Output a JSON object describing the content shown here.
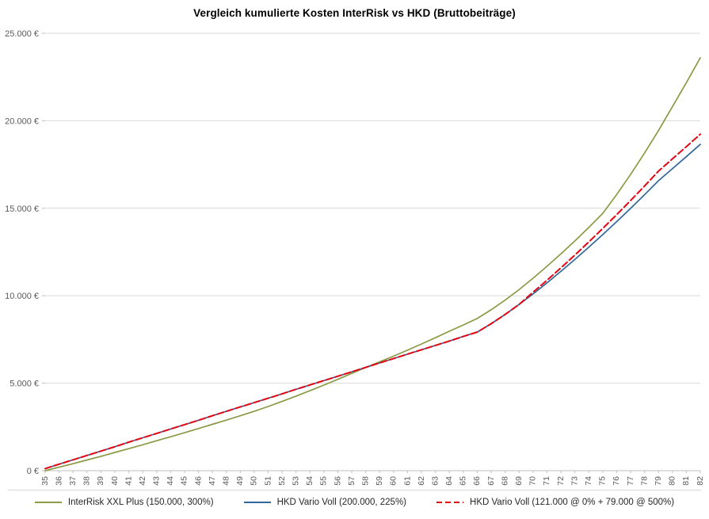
{
  "title": "Vergleich kumulierte Kosten InterRisk vs HKD (Bruttobeiträge)",
  "colors": {
    "background": "#ffffff",
    "grid": "#d9d9d9",
    "axis_line": "#bfbfbf",
    "axis_text": "#595959",
    "title_text": "#000000",
    "legend_text": "#262626",
    "series_green": "#8a9a45",
    "series_blue": "#31679b",
    "series_red": "#e30613"
  },
  "chart_data": {
    "type": "line",
    "title": "Vergleich kumulierte Kosten InterRisk vs HKD (Bruttobeiträge)",
    "xlabel": "",
    "ylabel": "",
    "grid": true,
    "legend_position": "bottom",
    "ylim": [
      0,
      25000
    ],
    "ytick_values": [
      0,
      5000,
      10000,
      15000,
      20000,
      25000
    ],
    "ytick_labels": [
      "0 €",
      "5.000 €",
      "10.000 €",
      "15.000 €",
      "20.000 €",
      "25.000 €"
    ],
    "x": [
      35,
      36,
      37,
      38,
      39,
      40,
      41,
      42,
      43,
      44,
      45,
      46,
      47,
      48,
      49,
      50,
      51,
      52,
      53,
      54,
      55,
      56,
      57,
      58,
      59,
      60,
      61,
      62,
      63,
      64,
      65,
      66,
      67,
      68,
      69,
      70,
      71,
      72,
      73,
      74,
      75,
      76,
      77,
      78,
      79,
      80,
      81,
      82
    ],
    "series": [
      {
        "name": "InterRisk XXL Plus (150.000, 300%)",
        "color": "#8a9a45",
        "style": "solid",
        "values": [
          0,
          200,
          400,
          610,
          820,
          1040,
          1260,
          1480,
          1710,
          1940,
          2170,
          2410,
          2650,
          2890,
          3140,
          3390,
          3670,
          3960,
          4260,
          4570,
          4890,
          5220,
          5560,
          5900,
          6220,
          6550,
          6890,
          7240,
          7600,
          7970,
          8330,
          8700,
          9200,
          9750,
          10350,
          11000,
          11680,
          12390,
          13130,
          13900,
          14700,
          15780,
          16930,
          18150,
          19440,
          20800,
          22180,
          23600
        ]
      },
      {
        "name": "HKD Vario Voll (200.000, 225%)",
        "color": "#31679b",
        "style": "solid",
        "values": [
          120,
          370,
          620,
          870,
          1120,
          1370,
          1630,
          1880,
          2130,
          2380,
          2630,
          2880,
          3140,
          3390,
          3640,
          3890,
          4140,
          4390,
          4650,
          4900,
          5150,
          5400,
          5650,
          5900,
          6160,
          6410,
          6660,
          6910,
          7160,
          7410,
          7670,
          7920,
          8400,
          8930,
          9500,
          10100,
          10730,
          11390,
          12070,
          12770,
          13490,
          14230,
          14990,
          15770,
          16570,
          17260,
          17950,
          18650
        ]
      },
      {
        "name": "HKD Vario Voll (121.000 @ 0% + 79.000 @ 500%)",
        "color": "#e30613",
        "style": "dashed",
        "values": [
          120,
          370,
          620,
          870,
          1120,
          1370,
          1630,
          1880,
          2130,
          2380,
          2630,
          2880,
          3140,
          3390,
          3640,
          3890,
          4140,
          4390,
          4650,
          4900,
          5150,
          5400,
          5650,
          5900,
          6160,
          6410,
          6660,
          6910,
          7160,
          7410,
          7670,
          7920,
          8400,
          8930,
          9500,
          10200,
          10880,
          11590,
          12320,
          13070,
          13840,
          14630,
          15440,
          16270,
          17120,
          17820,
          18520,
          19230
        ]
      }
    ]
  },
  "legend": {
    "items": [
      {
        "label": "InterRisk XXL Plus (150.000, 300%)"
      },
      {
        "label": "HKD Vario Voll (200.000, 225%)"
      },
      {
        "label": "HKD Vario Voll (121.000 @ 0% + 79.000 @ 500%)"
      }
    ]
  }
}
